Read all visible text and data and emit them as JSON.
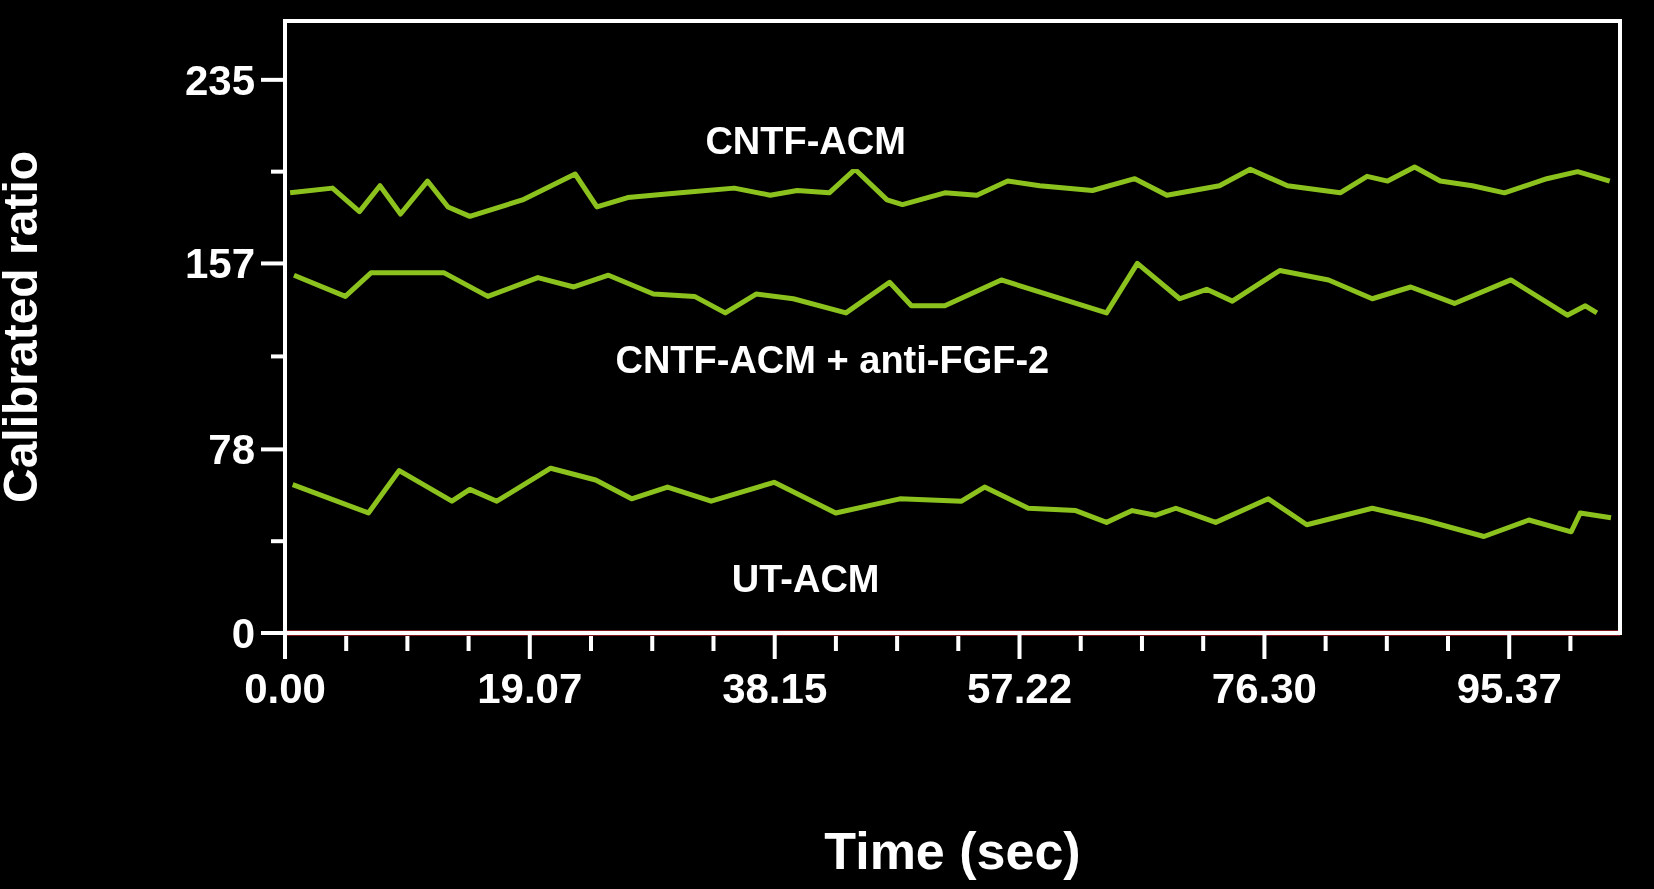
{
  "chart_data": {
    "type": "line",
    "xlabel": "Time (sec)",
    "ylabel": "Calibrated ratio",
    "xlim": [
      0,
      104
    ],
    "ylim": [
      0,
      260
    ],
    "xticks": [
      {
        "value": 0,
        "label": "0.00"
      },
      {
        "value": 19.07,
        "label": "19.07"
      },
      {
        "value": 38.15,
        "label": "38.15"
      },
      {
        "value": 57.22,
        "label": "57.22"
      },
      {
        "value": 76.3,
        "label": "76.30"
      },
      {
        "value": 95.37,
        "label": "95.37"
      }
    ],
    "yticks": [
      0,
      {
        "value": 39,
        "label": null
      },
      78,
      {
        "value": 117.5,
        "label": null
      },
      157,
      {
        "value": 196,
        "label": null
      },
      235
    ],
    "grid": false,
    "legend": false,
    "marker": "none",
    "line_style": "solid",
    "series": [
      {
        "name": "CNTF-ACM",
        "color": "#8cc21e",
        "x": [
          0.4,
          3.7,
          5.8,
          7.4,
          9.0,
          11.1,
          12.7,
          14.4,
          18.5,
          22.6,
          24.3,
          26.7,
          30.8,
          35.0,
          37.8,
          39.9,
          42.4,
          44.4,
          46.9,
          48.1,
          51.4,
          53.9,
          56.3,
          58.8,
          62.9,
          66.2,
          68.7,
          72.8,
          75.2,
          78.1,
          82.2,
          84.3,
          85.9,
          88.0,
          90.0,
          92.5,
          95.0,
          98.3,
          100.7,
          103.2
        ],
        "values": [
          187,
          189,
          179,
          190,
          178,
          192,
          181,
          177,
          184,
          195,
          181,
          185,
          187,
          189,
          186,
          188,
          187,
          197,
          184,
          182,
          187,
          186,
          192,
          190,
          188,
          193,
          186,
          190,
          197,
          190,
          187,
          194,
          192,
          198,
          192,
          190,
          187,
          193,
          196,
          192
        ]
      },
      {
        "name": "CNTF-ACM + anti-FGF-2",
        "color": "#8cc21e",
        "x": [
          0.7,
          4.7,
          6.7,
          12.4,
          15.8,
          19.7,
          22.5,
          25.2,
          28.7,
          31.9,
          34.3,
          36.7,
          39.6,
          43.7,
          47.1,
          48.8,
          51.4,
          55.8,
          64.0,
          66.4,
          69.7,
          71.8,
          73.8,
          77.5,
          81.3,
          84.7,
          87.7,
          91.1,
          95.5,
          99.9,
          101.3,
          102.2
        ],
        "values": [
          152,
          143,
          153,
          153,
          143,
          151,
          147,
          152,
          144,
          143,
          136,
          144,
          142,
          136,
          149,
          139,
          139,
          150,
          136,
          157,
          142,
          146,
          141,
          154,
          150,
          142,
          147,
          140,
          150,
          135,
          139,
          136
        ]
      },
      {
        "name": "UT-ACM",
        "color": "#8cc21e",
        "x": [
          0.6,
          6.5,
          8.9,
          13.0,
          14.4,
          16.5,
          20.7,
          24.2,
          27.0,
          29.8,
          33.2,
          38.1,
          42.9,
          47.9,
          52.7,
          54.5,
          57.9,
          61.6,
          64.0,
          66.0,
          67.8,
          69.4,
          72.5,
          76.6,
          79.6,
          84.7,
          88.7,
          93.4,
          96.9,
          100.2,
          100.9,
          103.3
        ],
        "values": [
          63,
          51,
          69,
          56,
          61,
          56,
          70,
          65,
          57,
          62,
          56,
          64,
          51,
          57,
          56,
          62,
          53,
          52,
          47,
          52,
          50,
          53,
          47,
          57,
          46,
          53,
          48,
          41,
          48,
          43,
          51,
          49
        ]
      }
    ]
  }
}
